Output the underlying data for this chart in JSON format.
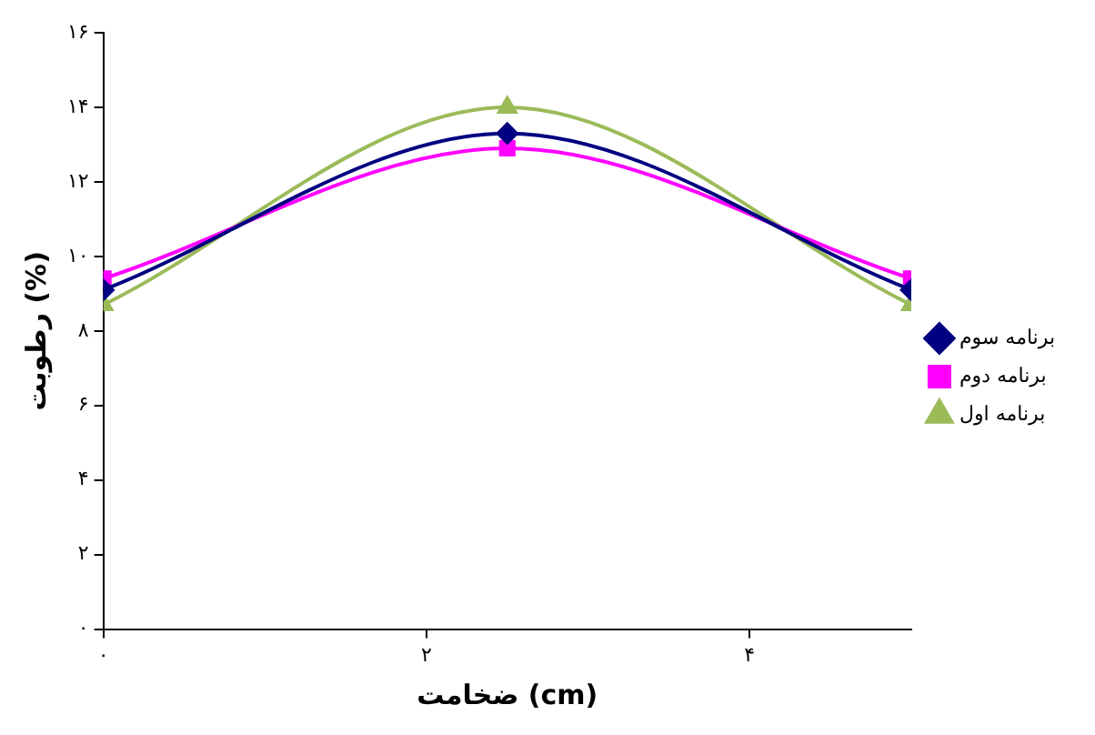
{
  "chart_data": {
    "type": "line",
    "xlabel": "ضخامت (cm)",
    "ylabel": "رطوبت (%)",
    "x": [
      0,
      2.5,
      5
    ],
    "xlim": [
      0,
      5
    ],
    "xticks": [
      {
        "value": 0,
        "label": "۰"
      },
      {
        "value": 2,
        "label": "۲"
      },
      {
        "value": 4,
        "label": "۴"
      }
    ],
    "ylim": [
      0,
      16
    ],
    "yticks": [
      {
        "value": 0,
        "label": "۰"
      },
      {
        "value": 2,
        "label": "۲"
      },
      {
        "value": 4,
        "label": "۴"
      },
      {
        "value": 6,
        "label": "۶"
      },
      {
        "value": 8,
        "label": "۸"
      },
      {
        "value": 10,
        "label": "۱۰"
      },
      {
        "value": 12,
        "label": "۱۲"
      },
      {
        "value": 14,
        "label": "۱۴"
      },
      {
        "value": 16,
        "label": "۱۶"
      }
    ],
    "grid": false,
    "legend": "right",
    "series": [
      {
        "name": "برنامه سوم",
        "color": "#000080",
        "marker": "diamond",
        "values": [
          9.1,
          13.3,
          9.1
        ]
      },
      {
        "name": "برنامه دوم",
        "color": "#ff00ff",
        "marker": "square",
        "values": [
          9.4,
          12.9,
          9.4
        ]
      },
      {
        "name": "برنامه اول",
        "color": "#9bbb59",
        "marker": "triangle",
        "values": [
          8.7,
          14,
          8.7
        ]
      }
    ]
  }
}
